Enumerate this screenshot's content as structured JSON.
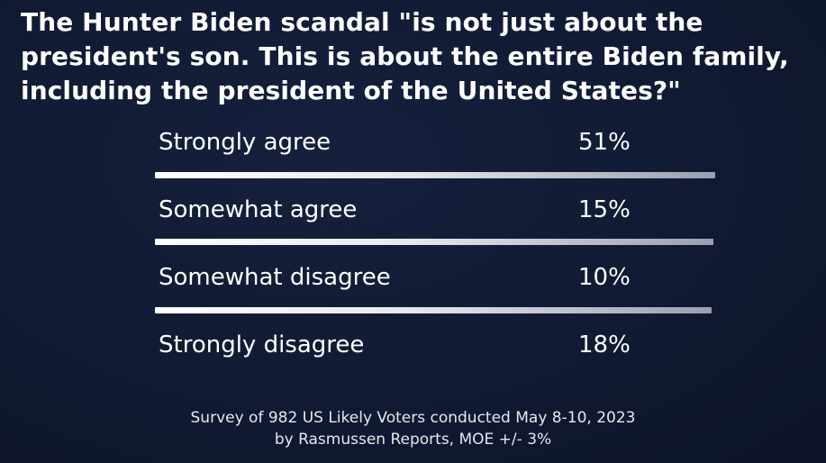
{
  "title_lines": [
    "The Hunter Biden scandal \"is not just about the",
    "president's son.  This is about the entire Biden family,",
    "including the president of the United States?\""
  ],
  "chart_data": {
    "type": "table",
    "title": "The Hunter Biden scandal \"is not just about the president's son.  This is about the entire Biden family, including the president of the United States?\"",
    "categories": [
      "Strongly agree",
      "Somewhat agree",
      "Somewhat disagree",
      "Strongly disagree"
    ],
    "values": [
      51,
      15,
      10,
      18
    ],
    "value_labels": [
      "51%",
      "15%",
      "10%",
      "18%"
    ],
    "unit": "%"
  },
  "footer": {
    "line1": "Survey of 982 US Likely Voters conducted May 8-10, 2023",
    "line2": "by Rasmussen Reports, MOE +/- 3%"
  },
  "colors": {
    "background": "#111a33",
    "text": "#ffffff",
    "divider_start": "#ffffff",
    "divider_end": "#9a9fb0"
  }
}
